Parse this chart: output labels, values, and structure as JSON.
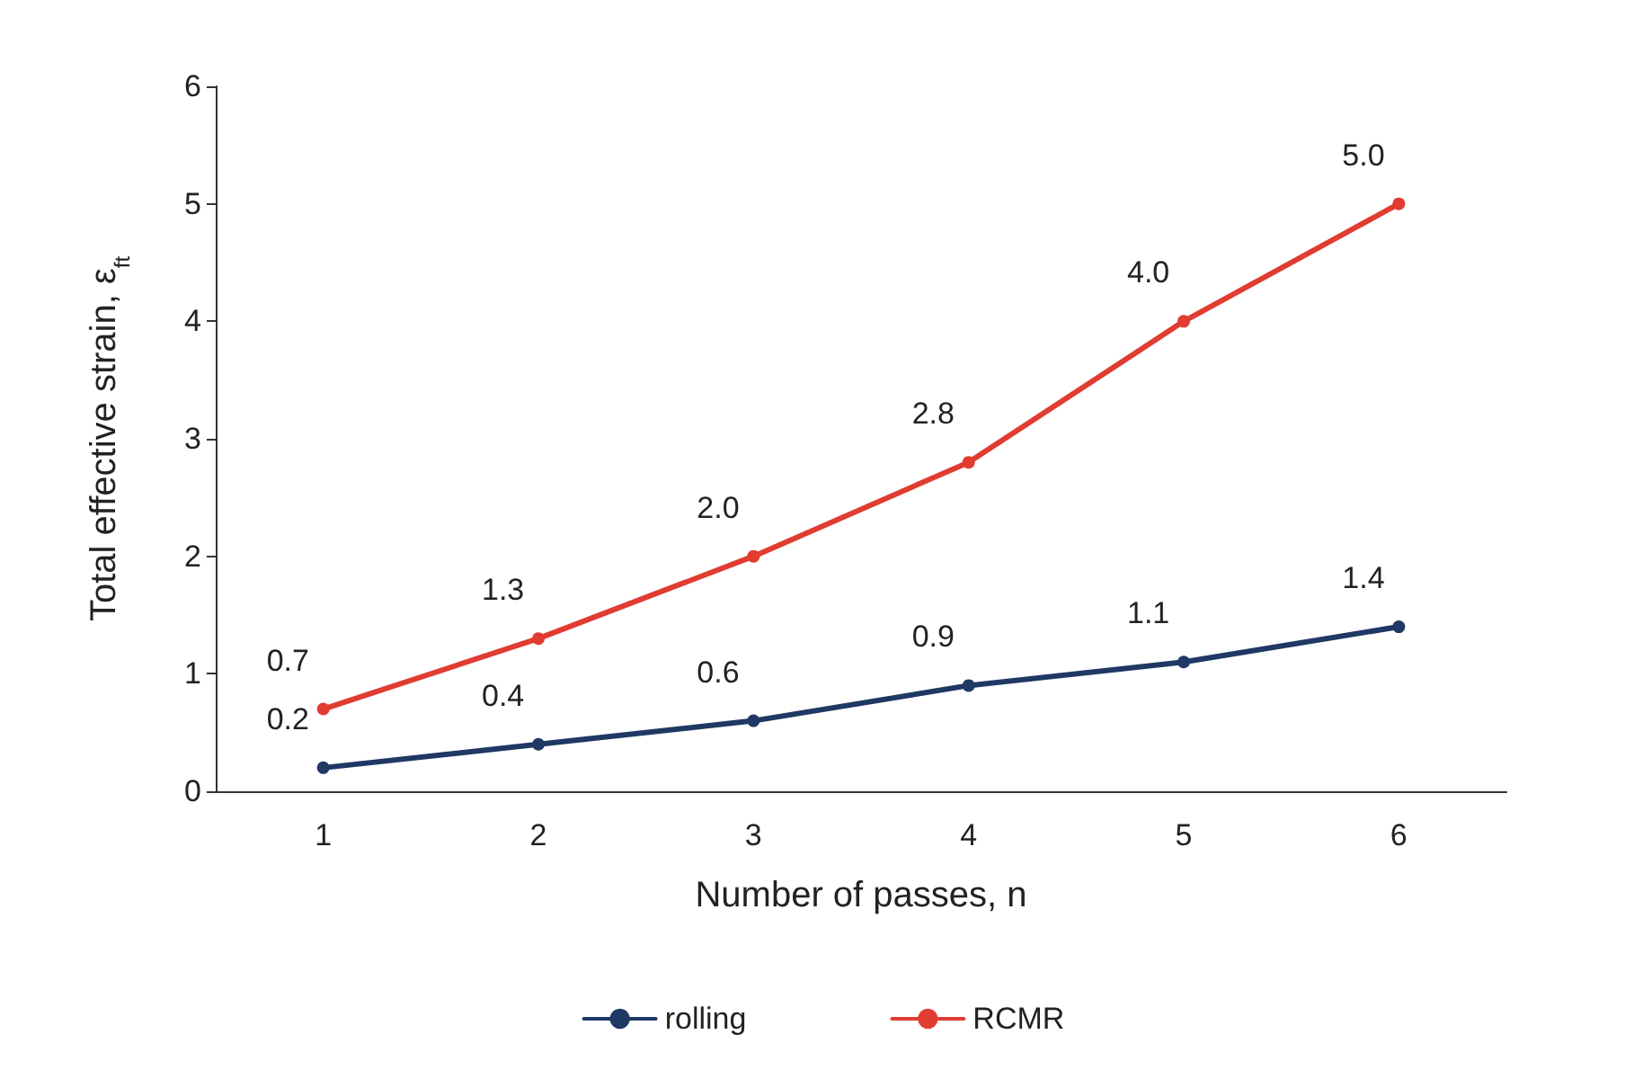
{
  "chart_data": {
    "type": "line",
    "xlabel": "Number of passes, n",
    "ylabel": "Total effective strain, ε$_{ft}$",
    "categories": [
      "1",
      "2",
      "3",
      "4",
      "5",
      "6"
    ],
    "series": [
      {
        "name": "rolling",
        "color": "#1f3864",
        "values": [
          0.2,
          0.4,
          0.6,
          0.9,
          1.1,
          1.4
        ],
        "value_labels": [
          "0.2",
          "0.4",
          "0.6",
          "0.9",
          "1.1",
          "1.4"
        ]
      },
      {
        "name": "RCMR",
        "color": "#e03c31",
        "values": [
          0.7,
          1.3,
          2.0,
          2.8,
          4.0,
          5.0
        ],
        "value_labels": [
          "0.7",
          "1.3",
          "2.0",
          "2.8",
          "4.0",
          "5.0"
        ]
      }
    ],
    "ylim": [
      0,
      6
    ],
    "yticks": [
      0,
      1,
      2,
      3,
      4,
      5,
      6
    ],
    "grid": false,
    "legend": "bottom",
    "marker": "circle",
    "line_style": "solid"
  }
}
